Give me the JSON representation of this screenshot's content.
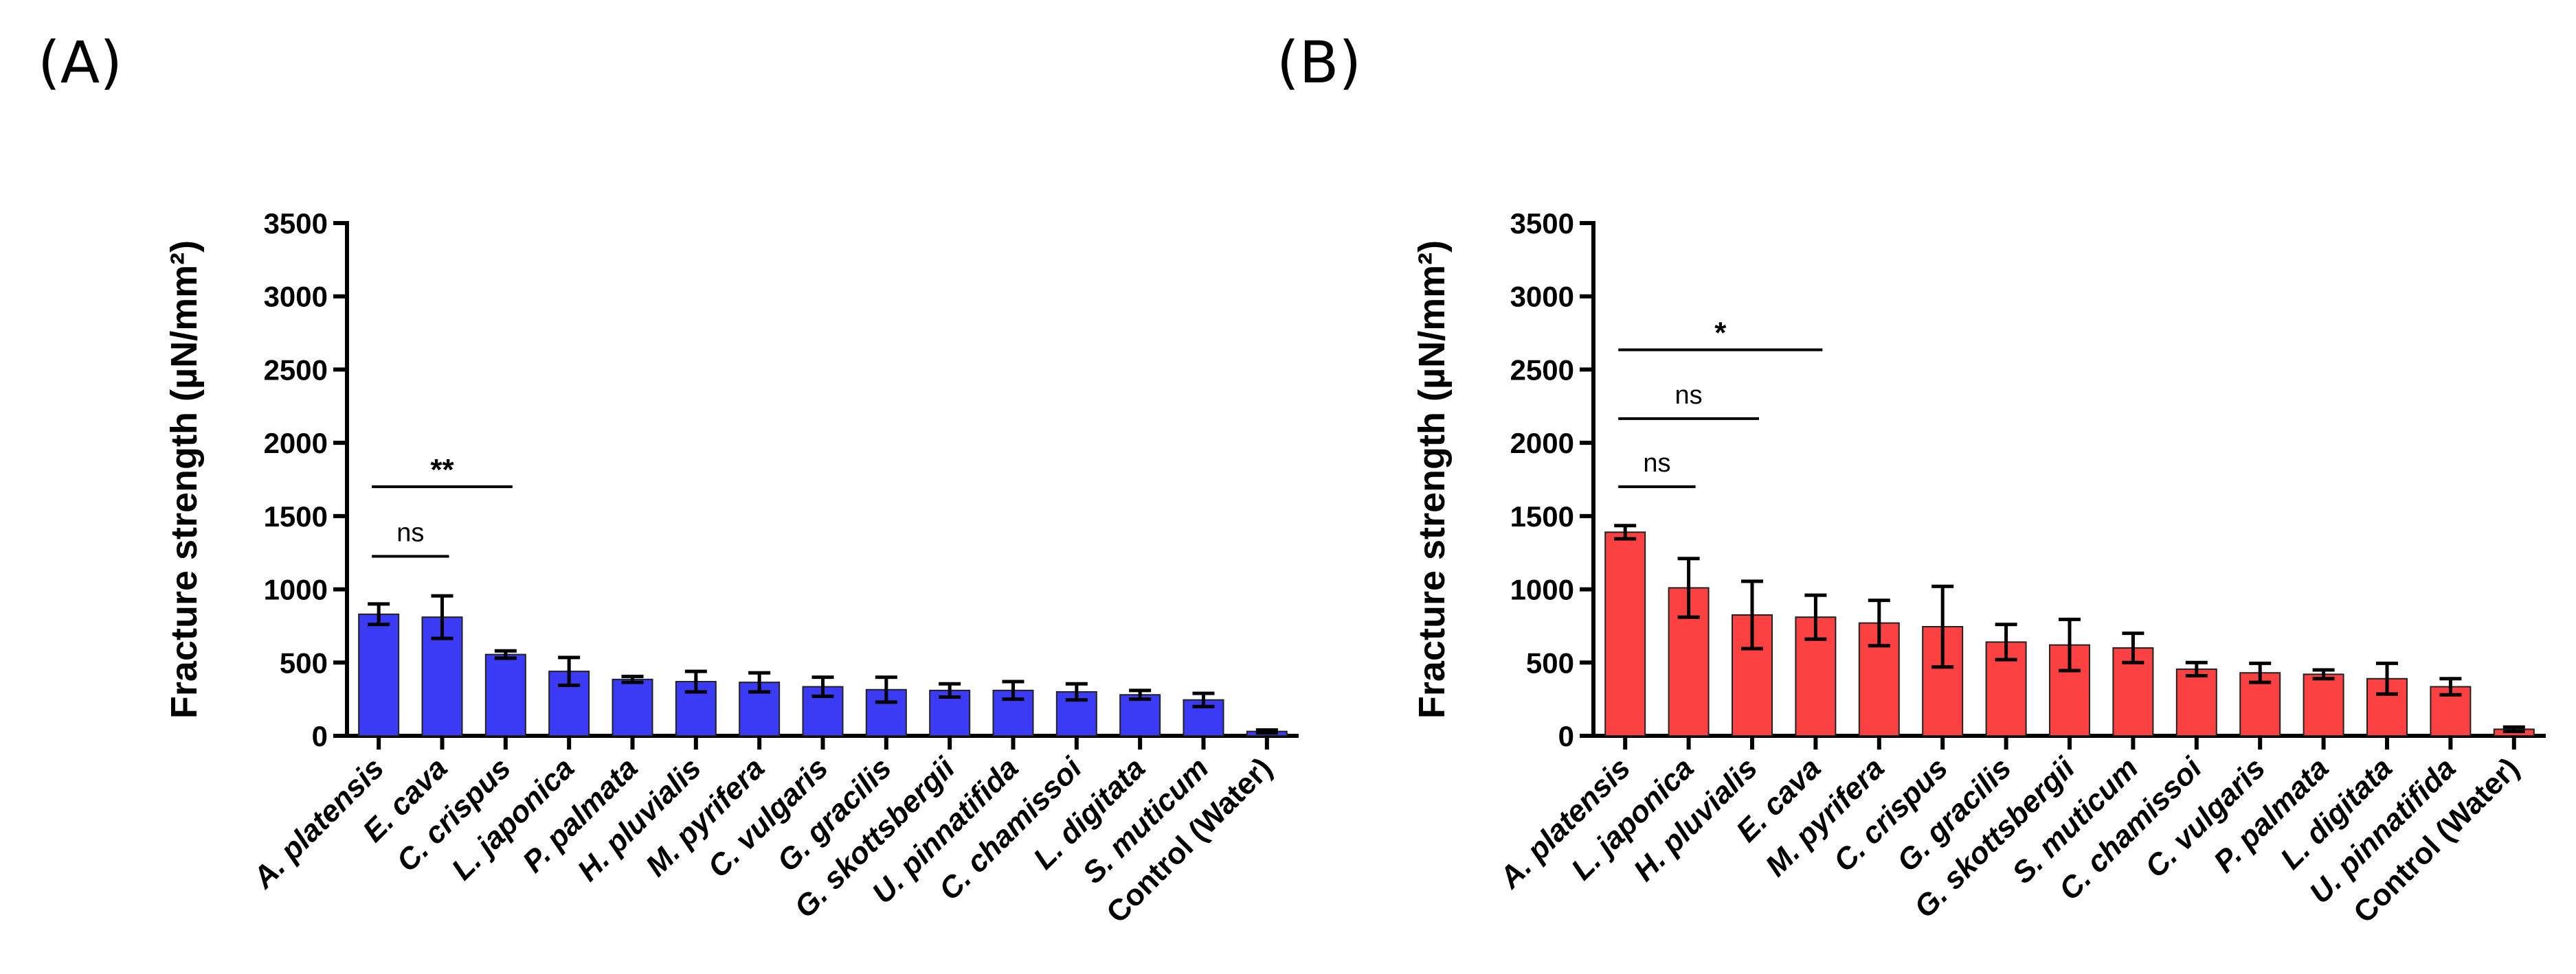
{
  "chart_data": [
    {
      "panel": "(A)",
      "type": "bar",
      "ylabel": "Fracture strength (µN/mm²)",
      "ylim": [
        0,
        3500
      ],
      "yticks": [
        0,
        500,
        1000,
        1500,
        2000,
        2500,
        3000,
        3500
      ],
      "color": "#3b3bf5",
      "categories": [
        "A. platensis",
        "E. cava",
        "C. crispus",
        "L. japonica",
        "P. palmata",
        "H. pluvialis",
        "M. pyrifera",
        "C. vulgaris",
        "G. gracilis",
        "G. skottsbergii",
        "U. pinnatifida",
        "C. chamissoi",
        "L. digitata",
        "S. muticum",
        "Control (Water)"
      ],
      "values": [
        830,
        810,
        555,
        440,
        385,
        370,
        365,
        335,
        315,
        310,
        310,
        300,
        280,
        245,
        30
      ],
      "errors": [
        70,
        145,
        25,
        95,
        20,
        70,
        65,
        65,
        85,
        45,
        60,
        55,
        30,
        45,
        10
      ],
      "annotations": [
        {
          "from": 0,
          "to": 1,
          "label": "ns",
          "y": 1225
        },
        {
          "from": 0,
          "to": 2,
          "label": "**",
          "y": 1700
        }
      ]
    },
    {
      "panel": "(B)",
      "type": "bar",
      "ylabel": "Fracture strength (µN/mm²)",
      "ylim": [
        0,
        3500
      ],
      "yticks": [
        0,
        500,
        1000,
        1500,
        2000,
        2500,
        3000,
        3500
      ],
      "color": "#fb4141",
      "categories": [
        "A. platensis",
        "L. japonica",
        "H. pluvialis",
        "E. cava",
        "M. pyrifera",
        "C. crispus",
        "G. gracilis",
        "G. skottsbergii",
        "S. muticum",
        "C. chamissoi",
        "C. vulgaris",
        "P. palmata",
        "L. digitata",
        "U. pinnatifida",
        "Control (Water)"
      ],
      "values": [
        1390,
        1010,
        825,
        810,
        770,
        745,
        640,
        620,
        600,
        455,
        430,
        420,
        390,
        335,
        45
      ],
      "errors": [
        45,
        200,
        230,
        150,
        155,
        275,
        120,
        175,
        100,
        45,
        65,
        30,
        105,
        55,
        15
      ],
      "annotations": [
        {
          "from": 0,
          "to": 1,
          "label": "ns",
          "y": 1700
        },
        {
          "from": 0,
          "to": 2,
          "label": "ns",
          "y": 2165
        },
        {
          "from": 0,
          "to": 3,
          "label": "*",
          "y": 2635
        }
      ]
    }
  ]
}
